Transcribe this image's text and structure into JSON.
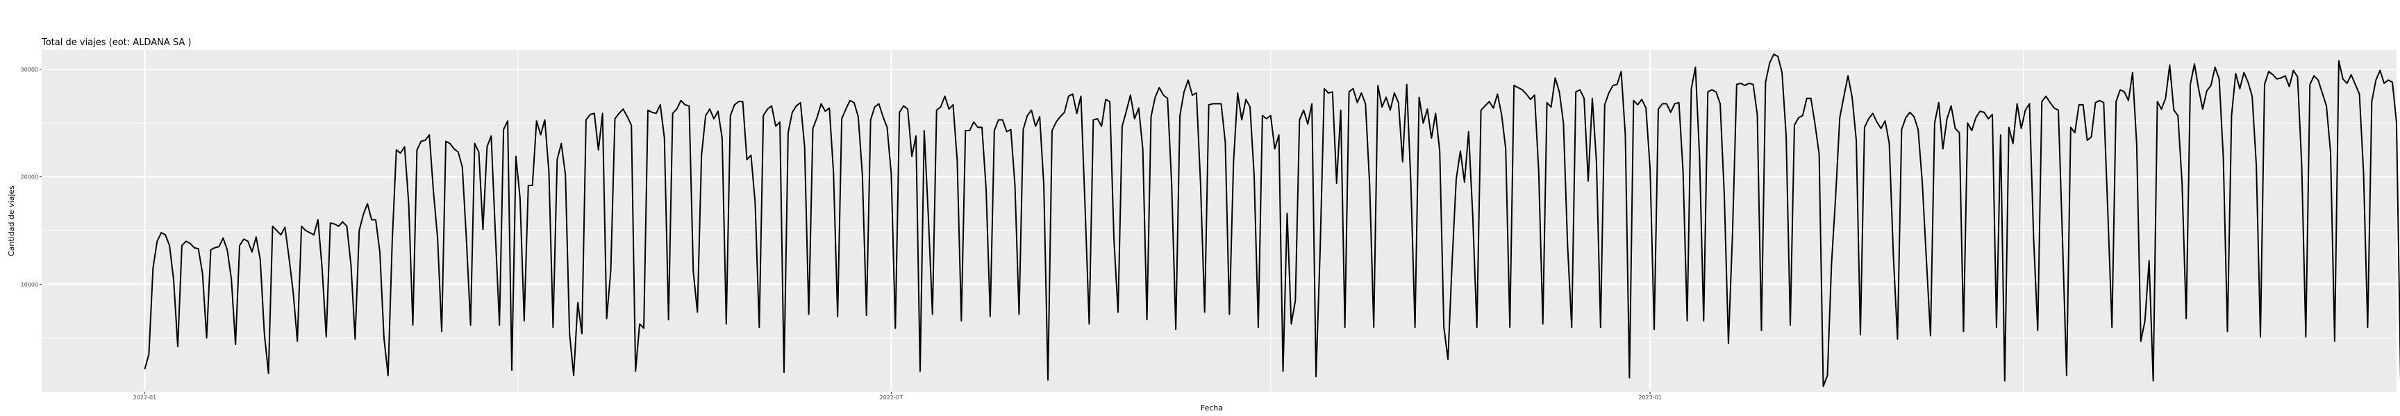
{
  "chart_data": {
    "type": "line",
    "title": "Total de viajes (eot: ALDANA SA )",
    "xlabel": "Fecha",
    "ylabel": "Cantidad de viajes",
    "xlim": [
      "2021-12-07",
      "2023-07-01"
    ],
    "ylim": [
      0,
      31800
    ],
    "x_ticks": [
      {
        "date": "2022-01-01",
        "label": "2022-01"
      },
      {
        "date": "2022-07-01",
        "label": "2022-07"
      },
      {
        "date": "2023-01-01",
        "label": "2023-01"
      }
    ],
    "y_ticks": [
      {
        "value": 10000,
        "label": "10000"
      },
      {
        "value": 20000,
        "label": "20000"
      },
      {
        "value": 30000,
        "label": "30000"
      }
    ],
    "grid": true,
    "background": "#ebebeb",
    "gridColor": "#ffffff",
    "lineColor": "#000000",
    "series": [
      {
        "x_start": "2022-01-01",
        "values": [
          2100,
          3500,
          11500,
          14000,
          14800,
          14600,
          13600,
          10400,
          4200,
          13600,
          14000,
          13800,
          13400,
          13300,
          11000,
          5000,
          13200,
          13400,
          13500,
          14300,
          13200,
          10500,
          4400,
          13600,
          14200,
          14000,
          13000,
          14400,
          12300,
          5400,
          1700,
          15400,
          15000,
          14600,
          15300,
          12400,
          9200,
          4700,
          15400,
          15000,
          14800,
          14600,
          16000,
          11500,
          5100,
          15700,
          15600,
          15400,
          15800,
          15400,
          11800,
          4900,
          15000,
          16500,
          17500,
          16000,
          16000,
          13000,
          5000,
          1500,
          14000,
          22500,
          22200,
          22800,
          17500,
          6200,
          22500,
          23300,
          23400,
          23900,
          18600,
          14300,
          5600,
          23300,
          23100,
          22600,
          22300,
          20900,
          14100,
          6200,
          23100,
          22300,
          15100,
          22800,
          23800,
          14800,
          6200,
          24400,
          25200,
          2000,
          21900,
          18000,
          6600,
          19200,
          19200,
          25200,
          23900,
          25300,
          20400,
          6000,
          21600,
          23100,
          20200,
          5400,
          1500,
          8300,
          5400,
          25300,
          25800,
          25900,
          22500,
          25900,
          6800,
          11300,
          25400,
          25900,
          26300,
          25600,
          24800,
          1900,
          6300,
          5900,
          26200,
          26000,
          25900,
          26700,
          23600,
          6700,
          25900,
          26300,
          27100,
          26700,
          26600,
          11200,
          7400,
          22000,
          25700,
          26300,
          25400,
          26100,
          23600,
          6300,
          25700,
          26700,
          27000,
          27000,
          21600,
          22000,
          17600,
          6000,
          25700,
          26300,
          26600,
          24700,
          25100,
          1800,
          24100,
          26000,
          26600,
          26900,
          22800,
          7200,
          24500,
          25500,
          26800,
          26100,
          26400,
          20400,
          7000,
          25400,
          26300,
          27100,
          26900,
          25600,
          20200,
          7100,
          25300,
          26500,
          26800,
          25600,
          24600,
          20300,
          5900,
          26000,
          26600,
          26300,
          21900,
          23800,
          1900,
          24300,
          16300,
          7200,
          26200,
          26500,
          27500,
          26300,
          26700,
          21500,
          6600,
          24300,
          24300,
          25100,
          24600,
          24600,
          18900,
          7000,
          24300,
          25300,
          25300,
          24200,
          24400,
          19200,
          7200,
          24400,
          25700,
          26200,
          24700,
          25600,
          19200,
          1100,
          24300,
          25100,
          25600,
          26000,
          27500,
          27700,
          25900,
          27500,
          17200,
          6300,
          25300,
          25400,
          24700,
          27200,
          27000,
          14200,
          7400,
          24700,
          26100,
          27600,
          25400,
          26400,
          22600,
          6700,
          25600,
          27400,
          28300,
          27600,
          27300,
          19300,
          5800,
          25700,
          27900,
          29000,
          27600,
          27800,
          19400,
          7400,
          26700,
          26800,
          26800,
          26800,
          23200,
          7200,
          21400,
          27800,
          25300,
          27200,
          26500,
          20100,
          6000,
          25700,
          25400,
          25700,
          22600,
          23900,
          1900,
          16600,
          6300,
          8500,
          25300,
          26200,
          24900,
          26800,
          1400,
          13200,
          28200,
          27800,
          27900,
          19400,
          26200,
          6000,
          27900,
          28200,
          26900,
          27800,
          26800,
          19300,
          6000,
          28500,
          26500,
          27400,
          26200,
          27800,
          26900,
          21400,
          28600,
          19400,
          6000,
          27400,
          25000,
          26300,
          23600,
          25900,
          22400,
          6000,
          3000,
          12100,
          19800,
          22400,
          19500,
          24200,
          16400,
          6000,
          26200,
          26600,
          27000,
          26400,
          27700,
          25800,
          22600,
          6000,
          28500,
          28300,
          28100,
          27700,
          27200,
          27600,
          20500,
          6300,
          26900,
          26500,
          29200,
          27900,
          25000,
          13600,
          6000,
          27900,
          28100,
          27300,
          19600,
          27300,
          21400,
          6000,
          26700,
          27800,
          28500,
          28600,
          29800,
          23900,
          1300,
          27100,
          26700,
          27200,
          26400,
          20800,
          5800,
          26300,
          26800,
          26800,
          26000,
          26800,
          26900,
          20500,
          6600,
          28200,
          30200,
          21900,
          6600,
          27900,
          28100,
          27900,
          26800,
          18300,
          4500,
          14800,
          28600,
          28700,
          28500,
          28700,
          28600,
          25800,
          5700,
          28800,
          30600,
          31400,
          31200,
          29700,
          23800,
          6200,
          24800,
          25500,
          25700,
          27300,
          27300,
          24900,
          22100,
          500,
          1500,
          11900,
          18200,
          25500,
          27500,
          29400,
          27400,
          23400,
          5300,
          24600,
          25400,
          25900,
          25100,
          24500,
          25200,
          23100,
          12600,
          4900,
          24400,
          25500,
          26000,
          25600,
          24400,
          19500,
          12300,
          5200,
          25000,
          26900,
          22600,
          25400,
          26600,
          24500,
          24100,
          5600,
          25000,
          24300,
          25500,
          26100,
          26000,
          25400,
          25800,
          6000,
          23900,
          1000,
          24600,
          23100,
          26800,
          24500,
          26200,
          26800,
          14300,
          5700,
          27000,
          27500,
          26900,
          26400,
          26200,
          14200,
          1500,
          24600,
          24100,
          26700,
          26700,
          23400,
          23700,
          26900,
          27100,
          26900,
          16700,
          6000,
          27000,
          28100,
          27900,
          27100,
          29700,
          23000,
          4700,
          6600,
          12200,
          1000,
          27000,
          26300,
          27300,
          30400,
          26200,
          25700,
          19400,
          6800,
          28600,
          30500,
          28200,
          26300,
          28000,
          28500,
          30200,
          29100,
          21800,
          5600,
          25700,
          29600,
          28200,
          29700,
          28800,
          27500,
          21100,
          5100,
          28600,
          29800,
          29500,
          29100,
          29200,
          29400,
          28400,
          29900,
          29300,
          21200,
          5100,
          28600,
          29400,
          29000,
          27800,
          26600,
          22300,
          4700,
          30800,
          29100,
          28700,
          29500,
          28600,
          27700,
          20400,
          6000,
          27000,
          29000,
          29900,
          28700,
          29000,
          28800,
          25000,
          1200
        ]
      }
    ]
  }
}
